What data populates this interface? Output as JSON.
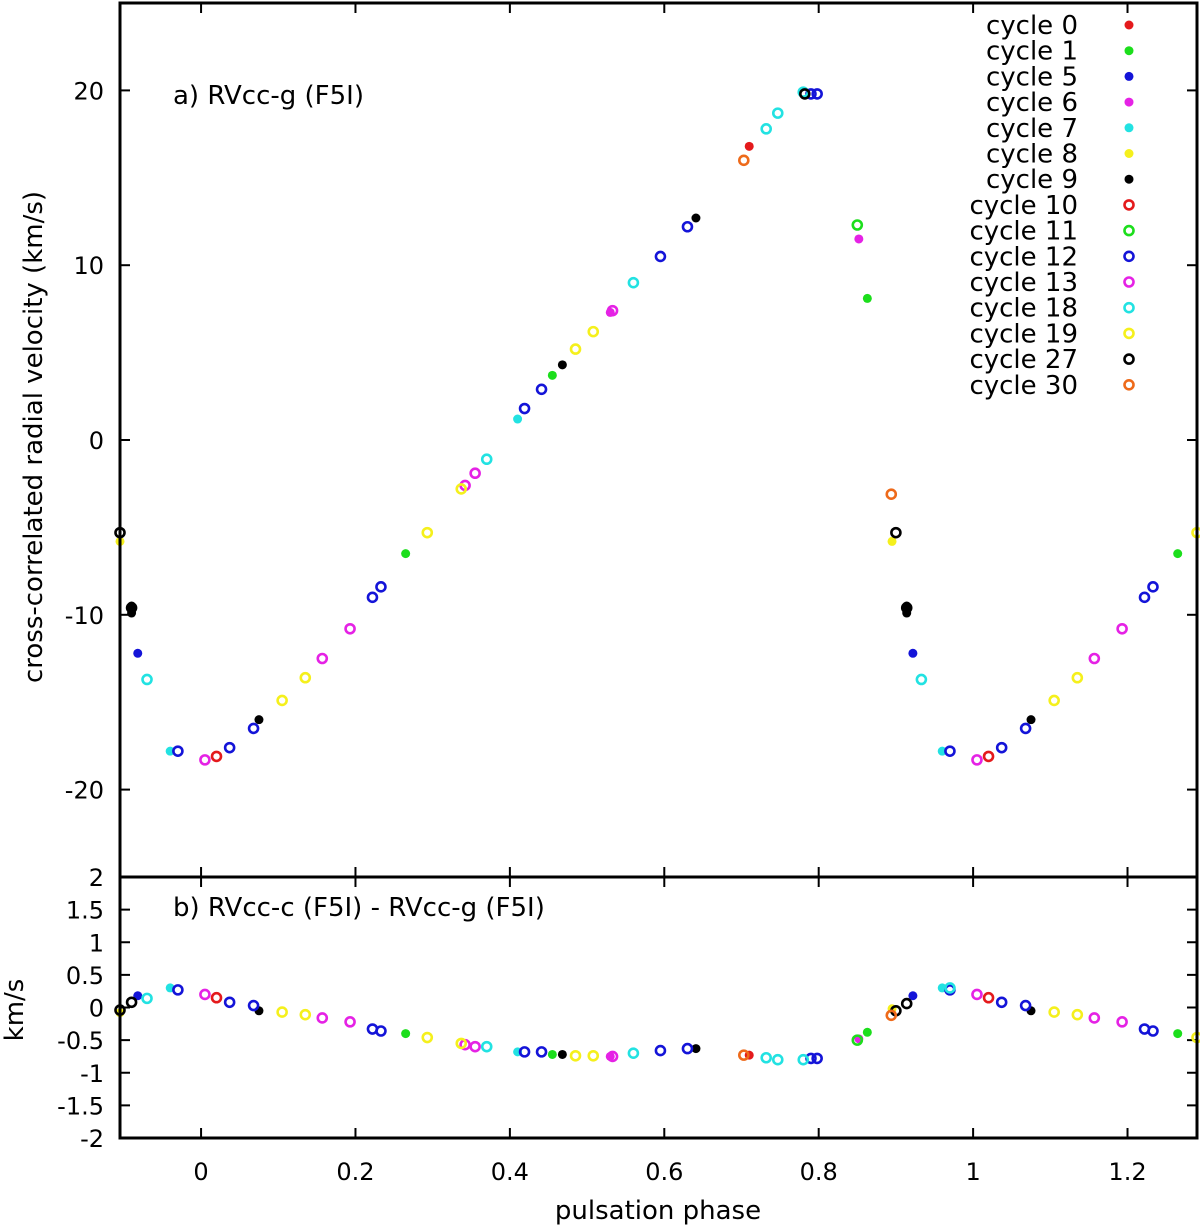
{
  "chart_data": [
    {
      "panel": "a",
      "type": "scatter",
      "label": "a) RVcc-g (F5I)",
      "ylabel": "cross-correlated radial velocity (km/s)",
      "xlabel": "",
      "xlim": [
        -0.105,
        1.29
      ],
      "ylim": [
        -25,
        25
      ],
      "x_ticks": [
        0,
        0.2,
        0.4,
        0.6,
        0.8,
        1,
        1.2
      ],
      "y_ticks": [
        -20,
        -10,
        0,
        10,
        20
      ],
      "y_tick_labels": [
        "-20",
        "-10",
        "0",
        "10",
        "20"
      ],
      "legend_position": "top-right",
      "legend": [
        {
          "name": "cycle 0",
          "color": "#e41a1c",
          "marker": "filled"
        },
        {
          "name": "cycle 1",
          "color": "#1cde1c",
          "marker": "filled"
        },
        {
          "name": "cycle 5",
          "color": "#1414d8",
          "marker": "filled"
        },
        {
          "name": "cycle 6",
          "color": "#e522e5",
          "marker": "filled"
        },
        {
          "name": "cycle 7",
          "color": "#22e2e2",
          "marker": "filled"
        },
        {
          "name": "cycle 8",
          "color": "#f5f01c",
          "marker": "filled"
        },
        {
          "name": "cycle 9",
          "color": "#000000",
          "marker": "filled"
        },
        {
          "name": "cycle 10",
          "color": "#e41a1c",
          "marker": "ring"
        },
        {
          "name": "cycle 11",
          "color": "#1cde1c",
          "marker": "ring"
        },
        {
          "name": "cycle 12",
          "color": "#1414d8",
          "marker": "ring"
        },
        {
          "name": "cycle 13",
          "color": "#e522e5",
          "marker": "ring"
        },
        {
          "name": "cycle 18",
          "color": "#22e2e2",
          "marker": "ring"
        },
        {
          "name": "cycle 19",
          "color": "#f5f01c",
          "marker": "ring"
        },
        {
          "name": "cycle 27",
          "color": "#000000",
          "marker": "ring"
        },
        {
          "name": "cycle 30",
          "color": "#ee6a1a",
          "marker": "ring"
        }
      ],
      "series": [
        {
          "name": "cycle 0",
          "points": [
            [
              0.71,
              16.8
            ]
          ]
        },
        {
          "name": "cycle 1",
          "points": [
            [
              0.265,
              -6.5
            ],
            [
              0.455,
              3.7
            ],
            [
              0.863,
              8.1
            ],
            [
              1.265,
              -6.5
            ]
          ]
        },
        {
          "name": "cycle 5",
          "points": [
            [
              -0.082,
              -12.2
            ],
            [
              0.922,
              -12.2
            ]
          ]
        },
        {
          "name": "cycle 6",
          "points": [
            [
              0.53,
              7.3
            ],
            [
              0.852,
              11.5
            ]
          ]
        },
        {
          "name": "cycle 7",
          "points": [
            [
              0.41,
              1.2
            ],
            [
              -0.04,
              -17.8
            ],
            [
              0.96,
              -17.8
            ]
          ]
        },
        {
          "name": "cycle 8",
          "points": [
            [
              -0.105,
              -5.8
            ],
            [
              0.895,
              -5.8
            ]
          ]
        },
        {
          "name": "cycle 9",
          "points": [
            [
              -0.09,
              -9.5
            ],
            [
              -0.09,
              -9.7
            ],
            [
              -0.09,
              -9.9
            ],
            [
              0.075,
              -16.0
            ],
            [
              0.468,
              4.3
            ],
            [
              0.641,
              12.7
            ],
            [
              0.914,
              -9.5
            ],
            [
              0.914,
              -9.7
            ],
            [
              0.914,
              -9.9
            ],
            [
              1.075,
              -16.0
            ]
          ]
        },
        {
          "name": "cycle 10",
          "points": [
            [
              0.02,
              -18.1
            ],
            [
              1.02,
              -18.1
            ]
          ]
        },
        {
          "name": "cycle 11",
          "points": [
            [
              0.85,
              12.3
            ]
          ]
        },
        {
          "name": "cycle 12",
          "points": [
            [
              -0.03,
              -17.8
            ],
            [
              0.037,
              -17.6
            ],
            [
              0.068,
              -16.5
            ],
            [
              0.222,
              -9.0
            ],
            [
              0.233,
              -8.4
            ],
            [
              0.419,
              1.8
            ],
            [
              0.441,
              2.9
            ],
            [
              0.595,
              10.5
            ],
            [
              0.63,
              12.2
            ],
            [
              0.79,
              19.8
            ],
            [
              0.798,
              19.8
            ],
            [
              0.97,
              -17.8
            ],
            [
              1.037,
              -17.6
            ],
            [
              1.068,
              -16.5
            ],
            [
              1.222,
              -9.0
            ],
            [
              1.233,
              -8.4
            ]
          ]
        },
        {
          "name": "cycle 13",
          "points": [
            [
              0.005,
              -18.3
            ],
            [
              0.157,
              -12.5
            ],
            [
              0.193,
              -10.8
            ],
            [
              0.342,
              -2.6
            ],
            [
              0.355,
              -1.9
            ],
            [
              0.533,
              7.4
            ],
            [
              1.005,
              -18.3
            ],
            [
              1.157,
              -12.5
            ],
            [
              1.193,
              -10.8
            ]
          ]
        },
        {
          "name": "cycle 18",
          "points": [
            [
              -0.07,
              -13.7
            ],
            [
              0.37,
              -1.1
            ],
            [
              0.56,
              9.0
            ],
            [
              0.732,
              17.8
            ],
            [
              0.747,
              18.7
            ],
            [
              0.78,
              19.9
            ],
            [
              0.933,
              -13.7
            ]
          ]
        },
        {
          "name": "cycle 19",
          "points": [
            [
              0.105,
              -14.9
            ],
            [
              0.135,
              -13.6
            ],
            [
              0.293,
              -5.3
            ],
            [
              0.337,
              -2.8
            ],
            [
              0.485,
              5.2
            ],
            [
              0.508,
              6.2
            ],
            [
              1.105,
              -14.9
            ],
            [
              1.135,
              -13.6
            ],
            [
              1.29,
              -5.3
            ]
          ]
        },
        {
          "name": "cycle 27",
          "points": [
            [
              -0.105,
              -5.3
            ],
            [
              -0.09,
              -9.6
            ],
            [
              0.782,
              19.8
            ],
            [
              0.9,
              -5.3
            ],
            [
              0.914,
              -9.6
            ]
          ]
        },
        {
          "name": "cycle 30",
          "points": [
            [
              0.703,
              16.0
            ],
            [
              0.894,
              -3.1
            ]
          ]
        }
      ]
    },
    {
      "panel": "b",
      "type": "scatter",
      "label": "b) RVcc-c (F5I) - RVcc-g (F5I)",
      "ylabel": "km/s",
      "xlabel": "pulsation phase",
      "xlim": [
        -0.105,
        1.29
      ],
      "ylim": [
        -2,
        2
      ],
      "x_ticks": [
        0,
        0.2,
        0.4,
        0.6,
        0.8,
        1,
        1.2
      ],
      "x_tick_labels": [
        "0",
        "0.2",
        "0.4",
        "0.6",
        "0.8",
        "1",
        "1.2"
      ],
      "y_ticks": [
        -2,
        -1.5,
        -1,
        -0.5,
        0,
        0.5,
        1,
        1.5,
        2
      ],
      "y_tick_labels": [
        "-2",
        "-1.5",
        "-1",
        "-0.5",
        "0",
        "0.5",
        "1",
        "1.5",
        "2"
      ],
      "series": [
        {
          "name": "cycle 0",
          "points": [
            [
              0.71,
              -0.73
            ]
          ]
        },
        {
          "name": "cycle 1",
          "points": [
            [
              0.265,
              -0.4
            ],
            [
              0.455,
              -0.72
            ],
            [
              0.863,
              -0.38
            ],
            [
              1.265,
              -0.4
            ]
          ]
        },
        {
          "name": "cycle 5",
          "points": [
            [
              -0.082,
              0.18
            ],
            [
              0.922,
              0.18
            ]
          ]
        },
        {
          "name": "cycle 6",
          "points": [
            [
              0.53,
              -0.75
            ],
            [
              0.852,
              -0.48
            ]
          ]
        },
        {
          "name": "cycle 7",
          "points": [
            [
              0.41,
              -0.68
            ],
            [
              -0.04,
              0.3
            ],
            [
              0.96,
              0.3
            ]
          ]
        },
        {
          "name": "cycle 8",
          "points": [
            [
              -0.105,
              -0.08
            ],
            [
              0.895,
              -0.02
            ]
          ]
        },
        {
          "name": "cycle 9",
          "points": [
            [
              0.075,
              -0.05
            ],
            [
              0.468,
              -0.72
            ],
            [
              0.641,
              -0.63
            ],
            [
              1.075,
              -0.05
            ]
          ]
        },
        {
          "name": "cycle 10",
          "points": [
            [
              0.02,
              0.15
            ],
            [
              1.02,
              0.15
            ]
          ]
        },
        {
          "name": "cycle 11",
          "points": [
            [
              0.85,
              -0.5
            ]
          ]
        },
        {
          "name": "cycle 12",
          "points": [
            [
              -0.03,
              0.27
            ],
            [
              0.037,
              0.08
            ],
            [
              0.068,
              0.03
            ],
            [
              0.222,
              -0.33
            ],
            [
              0.233,
              -0.36
            ],
            [
              0.419,
              -0.68
            ],
            [
              0.441,
              -0.68
            ],
            [
              0.595,
              -0.66
            ],
            [
              0.63,
              -0.63
            ],
            [
              0.79,
              -0.78
            ],
            [
              0.798,
              -0.78
            ],
            [
              0.97,
              0.27
            ],
            [
              1.037,
              0.08
            ],
            [
              1.068,
              0.03
            ],
            [
              1.222,
              -0.33
            ],
            [
              1.233,
              -0.36
            ]
          ]
        },
        {
          "name": "cycle 13",
          "points": [
            [
              0.005,
              0.2
            ],
            [
              0.157,
              -0.16
            ],
            [
              0.193,
              -0.22
            ],
            [
              0.342,
              -0.57
            ],
            [
              0.355,
              -0.6
            ],
            [
              0.533,
              -0.75
            ],
            [
              1.005,
              0.2
            ],
            [
              1.157,
              -0.16
            ],
            [
              1.193,
              -0.22
            ]
          ]
        },
        {
          "name": "cycle 18",
          "points": [
            [
              -0.07,
              0.14
            ],
            [
              0.37,
              -0.6
            ],
            [
              0.56,
              -0.7
            ],
            [
              0.732,
              -0.77
            ],
            [
              0.747,
              -0.8
            ],
            [
              0.78,
              -0.8
            ],
            [
              0.97,
              0.3
            ]
          ]
        },
        {
          "name": "cycle 19",
          "points": [
            [
              0.105,
              -0.07
            ],
            [
              0.135,
              -0.11
            ],
            [
              0.293,
              -0.46
            ],
            [
              0.337,
              -0.55
            ],
            [
              0.485,
              -0.74
            ],
            [
              0.508,
              -0.74
            ],
            [
              1.105,
              -0.07
            ],
            [
              1.135,
              -0.11
            ],
            [
              1.29,
              -0.46
            ]
          ]
        },
        {
          "name": "cycle 27",
          "points": [
            [
              -0.105,
              -0.04
            ],
            [
              -0.09,
              0.08
            ],
            [
              0.9,
              -0.05
            ],
            [
              0.914,
              0.06
            ]
          ]
        },
        {
          "name": "cycle 30",
          "points": [
            [
              0.703,
              -0.73
            ],
            [
              0.894,
              -0.12
            ]
          ]
        }
      ]
    }
  ]
}
